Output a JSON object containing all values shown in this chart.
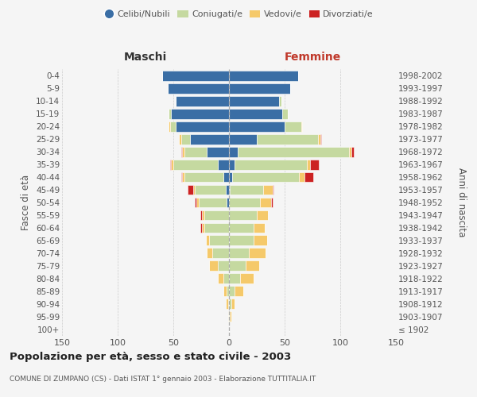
{
  "age_groups": [
    "100+",
    "95-99",
    "90-94",
    "85-89",
    "80-84",
    "75-79",
    "70-74",
    "65-69",
    "60-64",
    "55-59",
    "50-54",
    "45-49",
    "40-44",
    "35-39",
    "30-34",
    "25-29",
    "20-24",
    "15-19",
    "10-14",
    "5-9",
    "0-4"
  ],
  "birth_years": [
    "≤ 1902",
    "1903-1907",
    "1908-1912",
    "1913-1917",
    "1918-1922",
    "1923-1927",
    "1928-1932",
    "1933-1937",
    "1938-1942",
    "1943-1947",
    "1948-1952",
    "1953-1957",
    "1958-1962",
    "1963-1967",
    "1968-1972",
    "1973-1977",
    "1978-1982",
    "1983-1987",
    "1988-1992",
    "1993-1997",
    "1998-2002"
  ],
  "maschi_celibi": [
    0,
    0,
    0,
    0,
    0,
    0,
    0,
    0,
    0,
    0,
    2,
    3,
    5,
    10,
    20,
    35,
    48,
    52,
    48,
    55,
    60
  ],
  "maschi_coniugati": [
    0,
    0,
    1,
    2,
    5,
    10,
    15,
    18,
    22,
    22,
    25,
    28,
    35,
    40,
    20,
    8,
    5,
    2,
    0,
    0,
    0
  ],
  "maschi_vedovi": [
    0,
    1,
    2,
    3,
    5,
    8,
    5,
    3,
    2,
    2,
    2,
    1,
    2,
    2,
    2,
    2,
    1,
    0,
    0,
    0,
    0
  ],
  "maschi_divorziati": [
    0,
    0,
    0,
    0,
    0,
    0,
    0,
    0,
    2,
    2,
    2,
    5,
    1,
    1,
    1,
    0,
    0,
    0,
    0,
    0,
    0
  ],
  "femmine_nubili": [
    0,
    0,
    0,
    0,
    0,
    0,
    0,
    0,
    0,
    0,
    0,
    1,
    3,
    5,
    8,
    25,
    50,
    48,
    45,
    55,
    62
  ],
  "femmine_coniugate": [
    0,
    1,
    2,
    5,
    10,
    15,
    18,
    22,
    22,
    25,
    28,
    30,
    60,
    65,
    100,
    55,
    15,
    5,
    2,
    0,
    0
  ],
  "femmine_vedove": [
    0,
    1,
    3,
    8,
    12,
    12,
    15,
    12,
    10,
    10,
    10,
    8,
    5,
    3,
    2,
    2,
    1,
    0,
    0,
    0,
    0
  ],
  "femmine_divorziate": [
    0,
    0,
    0,
    0,
    0,
    0,
    0,
    0,
    0,
    0,
    1,
    1,
    8,
    8,
    2,
    1,
    0,
    0,
    0,
    0,
    0
  ],
  "c_celibi": "#3a6ea5",
  "c_coniug": "#c5d9a0",
  "c_vedovi": "#f5c96a",
  "c_divorz": "#cc2222",
  "xlim": 150,
  "title": "Popolazione per età, sesso e stato civile - 2003",
  "subtitle": "COMUNE DI ZUMPANO (CS) - Dati ISTAT 1° gennaio 2003 - Elaborazione TUTTITALIA.IT",
  "ylabel_left": "Fasce di età",
  "ylabel_right": "Anni di nascita",
  "label_maschi": "Maschi",
  "label_femmine": "Femmine",
  "legend_labels": [
    "Celibi/Nubili",
    "Coniugati/e",
    "Vedovi/e",
    "Divorziati/e"
  ],
  "bg_color": "#f5f5f5",
  "grid_color": "#cccccc",
  "text_color": "#555555"
}
